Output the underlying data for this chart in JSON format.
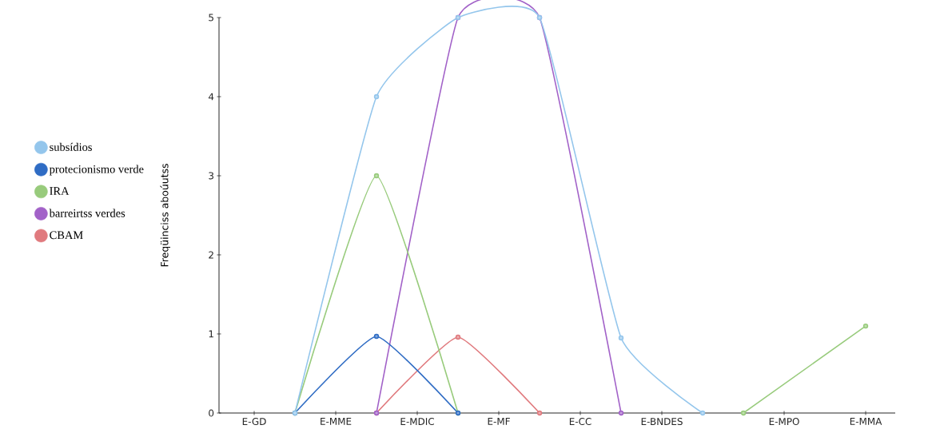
{
  "chart_data": {
    "type": "line",
    "ylabel": "Freqüinciss aboúutss",
    "categories": [
      "E-GD",
      null,
      "E-MME",
      null,
      "E-MDIC",
      null,
      "E-MF",
      null,
      "E-CC",
      null,
      "E-BNDES",
      null,
      null,
      "E-MPO",
      null,
      "E-MMA"
    ],
    "series": [
      {
        "name": "subsídios",
        "color": "#94c6ec",
        "values": [
          null,
          0,
          null,
          4,
          null,
          5,
          null,
          5,
          null,
          0.95,
          null,
          0,
          null,
          null,
          null,
          null
        ]
      },
      {
        "name": "protecionismo verde",
        "color": "#2f6cc4",
        "values": [
          null,
          0,
          null,
          0.97,
          null,
          0,
          null,
          null,
          null,
          null,
          null,
          null,
          null,
          null,
          null,
          null
        ]
      },
      {
        "name": "IRA",
        "color": "#98cb7c",
        "values": [
          null,
          0,
          null,
          3,
          null,
          0,
          null,
          null,
          null,
          null,
          null,
          null,
          0,
          null,
          null,
          1.1
        ]
      },
      {
        "name": "barreirtss verdes",
        "color": "#a262c8",
        "values": [
          null,
          null,
          null,
          0,
          null,
          5,
          null,
          5,
          null,
          0,
          null,
          null,
          null,
          null,
          null,
          null
        ]
      },
      {
        "name": "CBAM",
        "color": "#e07a7e",
        "values": [
          null,
          null,
          null,
          0,
          null,
          0.96,
          null,
          0,
          null,
          null,
          null,
          null,
          null,
          null,
          null,
          null
        ]
      }
    ],
    "ylim": [
      0,
      5
    ],
    "yticks": [
      0,
      1,
      2,
      3,
      4,
      5
    ],
    "grid": false,
    "legend": "left",
    "marker": "circle",
    "line_style": "solid"
  }
}
